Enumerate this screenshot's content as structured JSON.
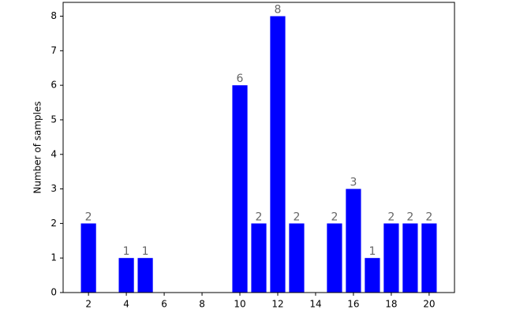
{
  "chart_data": {
    "type": "bar",
    "ylabel": "Number of samples",
    "x": [
      2,
      4,
      5,
      10,
      11,
      12,
      13,
      15,
      16,
      17,
      18,
      19,
      20
    ],
    "values": [
      2,
      1,
      1,
      6,
      2,
      8,
      2,
      2,
      3,
      1,
      2,
      2,
      2
    ],
    "color": "#0000ff",
    "bar_width": 0.8,
    "xlim": [
      0.66,
      21.34
    ],
    "xticks": [
      2,
      4,
      6,
      8,
      10,
      12,
      14,
      16,
      18,
      20
    ],
    "ylim": [
      0,
      8.4
    ],
    "yticks": [
      0,
      1,
      2,
      3,
      4,
      5,
      6,
      7,
      8
    ]
  }
}
